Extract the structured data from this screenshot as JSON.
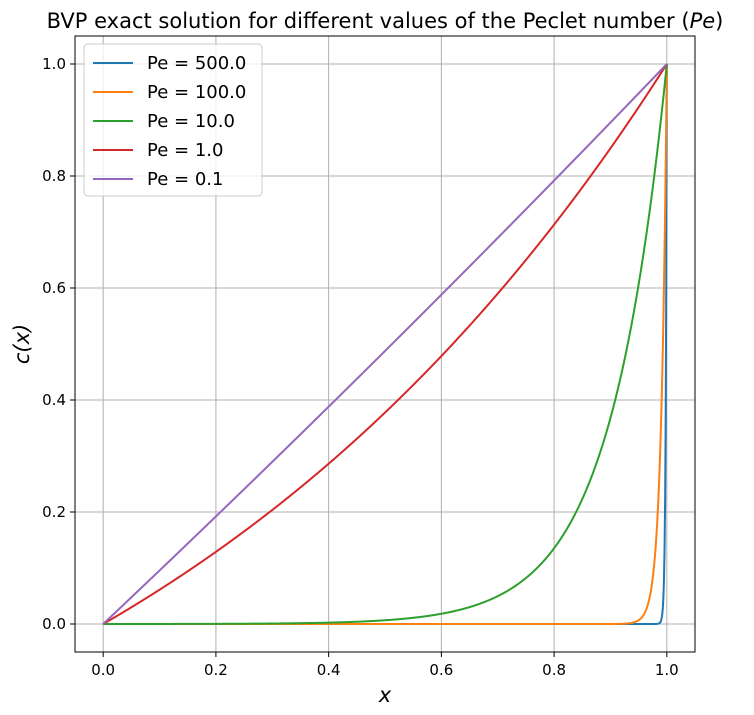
{
  "chart_data": {
    "type": "line",
    "title": "BVP exact solution for different values of the Peclet number (Pe)",
    "title_main": "BVP exact solution for different values of the Peclet number (",
    "title_symbol": "Pe",
    "title_close": ")",
    "xlabel": "x",
    "ylabel": "c(x)",
    "xlim": [
      -0.05,
      1.05
    ],
    "ylim": [
      -0.05,
      1.05
    ],
    "x_ticks": [
      0.0,
      0.2,
      0.4,
      0.6,
      0.8,
      1.0
    ],
    "x_tick_labels": [
      "0.0",
      "0.2",
      "0.4",
      "0.6",
      "0.8",
      "1.0"
    ],
    "y_ticks": [
      0.0,
      0.2,
      0.4,
      0.6,
      0.8,
      1.0
    ],
    "y_tick_labels": [
      "0.0",
      "0.2",
      "0.4",
      "0.6",
      "0.8",
      "1.0"
    ],
    "grid": true,
    "legend_position": "upper-left",
    "series": [
      {
        "name": "Pe = 500.0",
        "pe": 500.0,
        "color": "#1f77b4"
      },
      {
        "name": "Pe = 100.0",
        "pe": 100.0,
        "color": "#ff7f0e"
      },
      {
        "name": "Pe = 10.0",
        "pe": 10.0,
        "color": "#2ca02c"
      },
      {
        "name": "Pe = 1.0",
        "pe": 1.0,
        "color": "#d62728"
      },
      {
        "name": "Pe = 0.1",
        "pe": 0.1,
        "color": "#9467bd"
      }
    ]
  }
}
